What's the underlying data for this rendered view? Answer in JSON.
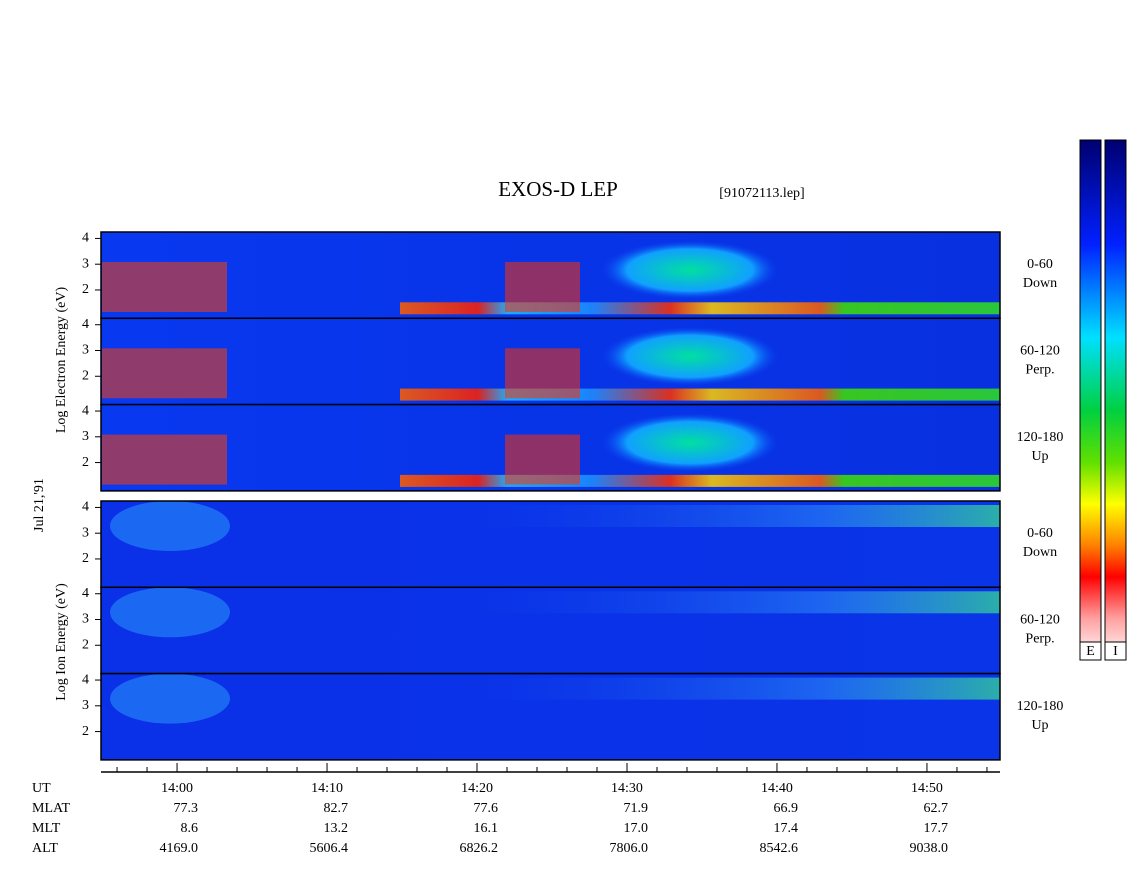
{
  "chart_data": {
    "type": "spectrogram",
    "title": "EXOS-D LEP",
    "file": "[91072113.lep]",
    "date": "Jul 21,'91",
    "electron_label": "Log Electron Energy (eV)",
    "ion_label": "Log Ion Energy (eV)",
    "panels": [
      {
        "species": "electron",
        "label": [
          "0-60",
          "Down"
        ]
      },
      {
        "species": "electron",
        "label": [
          "60-120",
          "Perp."
        ]
      },
      {
        "species": "electron",
        "label": [
          "120-180",
          "Up"
        ]
      },
      {
        "species": "ion",
        "label": [
          "0-60",
          "Down"
        ]
      },
      {
        "species": "ion",
        "label": [
          "60-120",
          "Perp."
        ]
      },
      {
        "species": "ion",
        "label": [
          "120-180",
          "Up"
        ]
      }
    ],
    "ylim": [
      0.9,
      4.25
    ],
    "yticks": [
      2,
      3,
      4
    ],
    "xlabel": "UT",
    "xlim": [
      -5.07,
      54.87
    ],
    "xticks": [
      {
        "value": 0,
        "label": "14:00"
      },
      {
        "value": 10,
        "label": "14:10"
      },
      {
        "value": 20,
        "label": "14:20"
      },
      {
        "value": 30,
        "label": "14:30"
      },
      {
        "value": 40,
        "label": "14:40"
      },
      {
        "value": 50,
        "label": "14:50"
      }
    ],
    "minor_xticks": [
      -4,
      -2,
      2,
      4,
      6,
      8,
      12,
      14,
      16,
      18,
      22,
      24,
      26,
      28,
      32,
      34,
      36,
      38,
      42,
      44,
      46,
      48,
      52,
      54
    ],
    "ephemeris": [
      {
        "label": "MLAT",
        "values": [
          "77.3",
          "82.7",
          "77.6",
          "71.9",
          "66.9",
          "62.7"
        ]
      },
      {
        "label": "MLT",
        "values": [
          "8.6",
          "13.2",
          "16.1",
          "17.0",
          "17.4",
          "17.7"
        ]
      },
      {
        "label": "ALT",
        "values": [
          "4169.0",
          "5606.4",
          "6826.2",
          "7806.0",
          "8542.6",
          "9038.0"
        ]
      }
    ],
    "colorbar_labels": [
      "E",
      "I"
    ]
  }
}
